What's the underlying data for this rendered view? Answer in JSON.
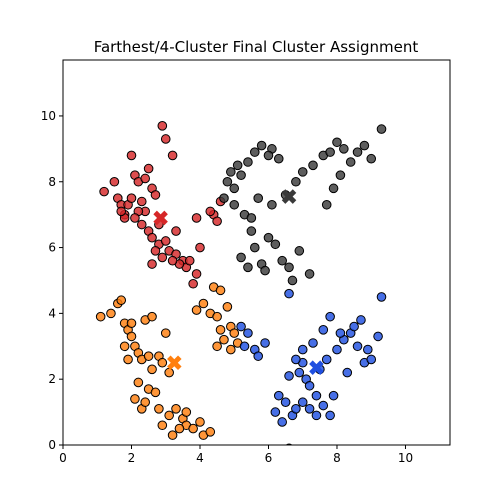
{
  "chart_data": {
    "type": "scatter",
    "title": "Farthest/4-Cluster Final Cluster Assignment",
    "xlabel": "",
    "ylabel": "",
    "xlim": [
      0,
      11.3
    ],
    "ylim": [
      0,
      11.7
    ],
    "xticks": [
      0,
      2,
      4,
      6,
      8,
      10
    ],
    "yticks": [
      0,
      2,
      4,
      6,
      8,
      10
    ],
    "grid": false,
    "series": [
      {
        "color": "#d62728",
        "points": [
          [
            1.2,
            7.7
          ],
          [
            1.5,
            8.0
          ],
          [
            1.6,
            7.5
          ],
          [
            1.7,
            7.3
          ],
          [
            1.8,
            7.0
          ],
          [
            1.9,
            7.3
          ],
          [
            2.0,
            7.5
          ],
          [
            2.1,
            8.2
          ],
          [
            2.2,
            8.0
          ],
          [
            2.0,
            8.8
          ],
          [
            2.4,
            8.1
          ],
          [
            2.5,
            8.4
          ],
          [
            2.6,
            7.8
          ],
          [
            2.7,
            7.6
          ],
          [
            2.4,
            7.1
          ],
          [
            2.3,
            6.7
          ],
          [
            2.5,
            6.5
          ],
          [
            2.6,
            6.3
          ],
          [
            2.8,
            6.1
          ],
          [
            3.0,
            6.2
          ],
          [
            3.1,
            5.9
          ],
          [
            2.9,
            5.7
          ],
          [
            2.7,
            5.9
          ],
          [
            3.3,
            5.8
          ],
          [
            3.5,
            5.6
          ],
          [
            3.6,
            5.4
          ],
          [
            3.9,
            5.2
          ],
          [
            3.8,
            4.9
          ],
          [
            3.4,
            5.5
          ],
          [
            3.2,
            5.6
          ],
          [
            2.9,
            9.7
          ],
          [
            3.0,
            9.3
          ],
          [
            3.2,
            8.8
          ],
          [
            2.2,
            7.1
          ],
          [
            1.8,
            6.9
          ],
          [
            2.1,
            6.9
          ],
          [
            2.6,
            5.5
          ],
          [
            3.7,
            5.6
          ],
          [
            4.0,
            6.0
          ],
          [
            4.4,
            7.0
          ],
          [
            4.3,
            7.1
          ],
          [
            4.6,
            7.4
          ],
          [
            4.5,
            6.8
          ],
          [
            3.9,
            6.9
          ],
          [
            1.7,
            7.1
          ],
          [
            2.3,
            7.4
          ],
          [
            2.8,
            6.7
          ],
          [
            3.3,
            6.5
          ]
        ]
      },
      {
        "color": "#3a3a3a",
        "points": [
          [
            4.7,
            7.5
          ],
          [
            4.8,
            8.0
          ],
          [
            4.9,
            8.3
          ],
          [
            5.0,
            7.8
          ],
          [
            5.1,
            8.5
          ],
          [
            5.2,
            8.2
          ],
          [
            5.4,
            8.6
          ],
          [
            5.6,
            8.9
          ],
          [
            5.8,
            9.1
          ],
          [
            6.1,
            9.0
          ],
          [
            5.0,
            7.3
          ],
          [
            5.3,
            7.0
          ],
          [
            5.5,
            6.5
          ],
          [
            5.6,
            6.0
          ],
          [
            5.8,
            5.5
          ],
          [
            5.2,
            5.7
          ],
          [
            5.4,
            5.4
          ],
          [
            5.9,
            5.3
          ],
          [
            6.0,
            6.3
          ],
          [
            6.2,
            6.1
          ],
          [
            6.4,
            5.6
          ],
          [
            6.6,
            5.4
          ],
          [
            6.9,
            5.9
          ],
          [
            7.2,
            5.2
          ],
          [
            6.1,
            7.3
          ],
          [
            6.5,
            7.6
          ],
          [
            6.8,
            8.0
          ],
          [
            7.0,
            8.3
          ],
          [
            7.3,
            8.5
          ],
          [
            7.6,
            8.8
          ],
          [
            7.8,
            8.9
          ],
          [
            8.0,
            9.2
          ],
          [
            8.2,
            9.0
          ],
          [
            8.4,
            8.6
          ],
          [
            8.6,
            8.9
          ],
          [
            8.8,
            9.1
          ],
          [
            9.0,
            8.7
          ],
          [
            9.3,
            9.6
          ],
          [
            8.1,
            8.2
          ],
          [
            7.9,
            7.8
          ],
          [
            7.7,
            7.3
          ],
          [
            6.7,
            5.0
          ],
          [
            6.3,
            8.7
          ],
          [
            6.0,
            8.8
          ],
          [
            5.5,
            6.9
          ],
          [
            5.7,
            7.5
          ]
        ]
      },
      {
        "color": "#ff7f0e",
        "points": [
          [
            1.1,
            3.9
          ],
          [
            1.4,
            4.0
          ],
          [
            1.6,
            4.3
          ],
          [
            1.7,
            4.4
          ],
          [
            1.8,
            3.7
          ],
          [
            1.9,
            3.5
          ],
          [
            2.0,
            3.3
          ],
          [
            2.1,
            3.0
          ],
          [
            2.2,
            2.8
          ],
          [
            1.8,
            3.0
          ],
          [
            2.0,
            3.7
          ],
          [
            2.4,
            3.8
          ],
          [
            2.6,
            3.9
          ],
          [
            2.3,
            2.6
          ],
          [
            2.5,
            2.7
          ],
          [
            2.8,
            2.7
          ],
          [
            2.9,
            2.5
          ],
          [
            3.1,
            2.2
          ],
          [
            2.6,
            2.3
          ],
          [
            3.0,
            3.4
          ],
          [
            2.2,
            1.9
          ],
          [
            2.5,
            1.7
          ],
          [
            2.7,
            1.6
          ],
          [
            2.1,
            1.4
          ],
          [
            2.3,
            1.1
          ],
          [
            2.8,
            1.1
          ],
          [
            3.1,
            0.9
          ],
          [
            3.3,
            1.1
          ],
          [
            3.5,
            0.8
          ],
          [
            3.6,
            0.6
          ],
          [
            3.8,
            0.5
          ],
          [
            4.1,
            0.3
          ],
          [
            4.3,
            0.4
          ],
          [
            4.0,
            0.7
          ],
          [
            3.2,
            0.3
          ],
          [
            3.4,
            0.5
          ],
          [
            3.9,
            4.1
          ],
          [
            4.1,
            4.3
          ],
          [
            4.3,
            4.0
          ],
          [
            4.5,
            3.9
          ],
          [
            4.6,
            3.5
          ],
          [
            4.8,
            4.2
          ],
          [
            4.9,
            3.6
          ],
          [
            5.0,
            3.4
          ],
          [
            4.7,
            3.2
          ],
          [
            4.9,
            2.9
          ],
          [
            5.1,
            3.1
          ],
          [
            4.4,
            4.8
          ],
          [
            4.6,
            4.7
          ],
          [
            4.5,
            3.0
          ],
          [
            1.9,
            2.6
          ],
          [
            2.4,
            1.3
          ],
          [
            2.9,
            0.6
          ],
          [
            3.6,
            1.0
          ]
        ]
      },
      {
        "color": "#1f4fe0",
        "points": [
          [
            5.2,
            3.6
          ],
          [
            5.4,
            3.4
          ],
          [
            5.3,
            3.0
          ],
          [
            5.6,
            2.9
          ],
          [
            5.9,
            3.1
          ],
          [
            5.7,
            2.7
          ],
          [
            6.5,
            1.3
          ],
          [
            6.7,
            0.9
          ],
          [
            6.8,
            1.1
          ],
          [
            6.6,
            2.1
          ],
          [
            6.9,
            2.2
          ],
          [
            7.0,
            2.5
          ],
          [
            7.1,
            2.0
          ],
          [
            7.2,
            1.8
          ],
          [
            7.4,
            1.5
          ],
          [
            7.6,
            1.2
          ],
          [
            7.8,
            0.9
          ],
          [
            7.9,
            1.5
          ],
          [
            7.5,
            2.3
          ],
          [
            7.7,
            2.6
          ],
          [
            8.0,
            2.9
          ],
          [
            8.2,
            3.2
          ],
          [
            8.4,
            3.4
          ],
          [
            8.6,
            3.0
          ],
          [
            8.8,
            2.5
          ],
          [
            8.7,
            3.8
          ],
          [
            8.5,
            3.6
          ],
          [
            8.1,
            3.4
          ],
          [
            7.8,
            3.9
          ],
          [
            7.6,
            3.5
          ],
          [
            7.3,
            3.1
          ],
          [
            7.0,
            2.9
          ],
          [
            6.8,
            2.6
          ],
          [
            9.0,
            2.6
          ],
          [
            9.2,
            3.3
          ],
          [
            9.3,
            4.5
          ],
          [
            6.6,
            4.6
          ],
          [
            6.4,
            0.7
          ],
          [
            6.6,
            -0.1
          ],
          [
            7.2,
            1.1
          ],
          [
            7.4,
            0.9
          ],
          [
            8.3,
            2.2
          ],
          [
            8.9,
            2.9
          ],
          [
            6.2,
            1.0
          ],
          [
            6.3,
            1.5
          ],
          [
            7.0,
            1.3
          ]
        ]
      }
    ],
    "centroids": [
      {
        "color": "#d62728",
        "x": 2.85,
        "y": 6.9
      },
      {
        "color": "#3a3a3a",
        "x": 6.6,
        "y": 7.55
      },
      {
        "color": "#ff7f0e",
        "x": 3.25,
        "y": 2.5
      },
      {
        "color": "#1f4fe0",
        "x": 7.4,
        "y": 2.35
      }
    ]
  }
}
